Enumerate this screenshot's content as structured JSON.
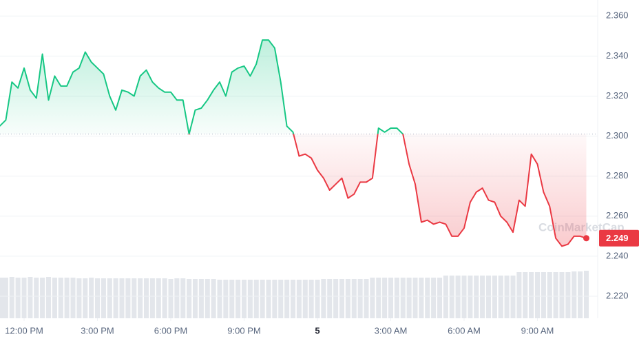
{
  "chart_data": {
    "type": "line",
    "watermark": "CoinMarketCap",
    "x": [
      -1,
      -0.75,
      -0.5,
      -0.25,
      0,
      0.25,
      0.5,
      0.75,
      1,
      1.25,
      1.5,
      1.75,
      2,
      2.25,
      2.5,
      2.75,
      3,
      3.25,
      3.5,
      3.75,
      4,
      4.25,
      4.5,
      4.75,
      5,
      5.25,
      5.5,
      5.75,
      6,
      6.25,
      6.5,
      6.75,
      7,
      7.25,
      7.5,
      7.75,
      8,
      8.25,
      8.5,
      8.75,
      9,
      9.25,
      9.5,
      9.75,
      10,
      10.25,
      10.5,
      10.75,
      11,
      11.25,
      11.5,
      11.75,
      12,
      12.25,
      12.5,
      12.75,
      13,
      13.25,
      13.5,
      13.75,
      14,
      14.25,
      14.5,
      14.75,
      15,
      15.25,
      15.5,
      15.75,
      16,
      16.25,
      16.5,
      16.75,
      17,
      17.25,
      17.5,
      17.75,
      18,
      18.25,
      18.5,
      18.75,
      19,
      19.25,
      19.5,
      19.75,
      20,
      20.25,
      20.5,
      20.75,
      21,
      21.25,
      21.5,
      21.75,
      22,
      22.25,
      22.5,
      22.75,
      23
    ],
    "series": [
      {
        "values": [
          2.305,
          2.308,
          2.327,
          2.324,
          2.334,
          2.323,
          2.319,
          2.341,
          2.318,
          2.33,
          2.325,
          2.325,
          2.332,
          2.334,
          2.342,
          2.337,
          2.334,
          2.331,
          2.32,
          2.313,
          2.323,
          2.322,
          2.32,
          2.33,
          2.333,
          2.327,
          2.324,
          2.322,
          2.322,
          2.318,
          2.318,
          2.301,
          2.313,
          2.314,
          2.318,
          2.323,
          2.327,
          2.32,
          2.332,
          2.334,
          2.335,
          2.33,
          2.336,
          2.348,
          2.348,
          2.344,
          2.327,
          2.305,
          2.302,
          2.29,
          2.291,
          2.289,
          2.283,
          2.279,
          2.273,
          2.276,
          2.279,
          2.269,
          2.271,
          2.277,
          2.277,
          2.279,
          2.304,
          2.302,
          2.304,
          2.304,
          2.301,
          2.286,
          2.276,
          2.257,
          2.258,
          2.256,
          2.257,
          2.256,
          2.25,
          2.25,
          2.254,
          2.267,
          2.272,
          2.274,
          2.268,
          2.267,
          2.26,
          2.257,
          2.252,
          2.268,
          2.265,
          2.291,
          2.286,
          2.272,
          2.265,
          2.249,
          2.245,
          2.246,
          2.25,
          2.25,
          2.249
        ],
        "up_color": "#16c784",
        "down_color": "#ea3943"
      }
    ],
    "volume": [
      59,
      59,
      60,
      59,
      59,
      60,
      59,
      59,
      60,
      59,
      59,
      59,
      59,
      58,
      58,
      59,
      58,
      58,
      58,
      58,
      58,
      58,
      58,
      58,
      58,
      58,
      58,
      58,
      57,
      58,
      58,
      57,
      57,
      57,
      57,
      57,
      56,
      56,
      56,
      56,
      56,
      56,
      56,
      56,
      56,
      56,
      56,
      56,
      56,
      56,
      56,
      56,
      56,
      57,
      57,
      57,
      57,
      57,
      57,
      57,
      57,
      59,
      59,
      59,
      59,
      59,
      59,
      59,
      59,
      59,
      59,
      59,
      59,
      62,
      62,
      62,
      62,
      62,
      62,
      62,
      62,
      62,
      62,
      62,
      62,
      67,
      67,
      67,
      67,
      67,
      67,
      67,
      67,
      67,
      68,
      68,
      69
    ],
    "volume_color": "#e3e6eb",
    "volume_lim": [
      0,
      100
    ],
    "baseline": 2.301,
    "last_price": 2.249,
    "xlim": [
      -0.986,
      23.465
    ],
    "ylim": [
      2.209,
      2.368
    ],
    "xticks": [
      {
        "value": 0,
        "label": "12:00 PM"
      },
      {
        "value": 3,
        "label": "3:00 PM"
      },
      {
        "value": 6,
        "label": "6:00 PM"
      },
      {
        "value": 9,
        "label": "9:00 PM"
      },
      {
        "value": 12,
        "label": "5"
      },
      {
        "value": 15,
        "label": "3:00 AM"
      },
      {
        "value": 18,
        "label": "6:00 AM"
      },
      {
        "value": 21,
        "label": "9:00 AM"
      }
    ],
    "yticks": [
      {
        "value": 2.22,
        "label": "2.220"
      },
      {
        "value": 2.24,
        "label": "2.240"
      },
      {
        "value": 2.26,
        "label": "2.260"
      },
      {
        "value": 2.28,
        "label": "2.280"
      },
      {
        "value": 2.3,
        "label": "2.300"
      },
      {
        "value": 2.32,
        "label": "2.320"
      },
      {
        "value": 2.34,
        "label": "2.340"
      },
      {
        "value": 2.36,
        "label": "2.360"
      }
    ],
    "grid": true
  }
}
